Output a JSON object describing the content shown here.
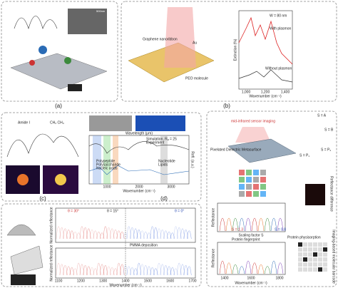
{
  "panel_a": {
    "label": "(a)",
    "image_text": "500nm"
  },
  "panel_b": {
    "label": "(b)",
    "diagram_labels": [
      "Graphene nanoribbon",
      "Au",
      "PEO molecule"
    ],
    "plot": {
      "y_label": "Extinction (%)",
      "x_label": "Wavenumber (cm⁻¹)",
      "annotations": [
        "W = 80 nm",
        "With plasmon",
        "Without plasmon"
      ],
      "x_ticks": [
        "1,000",
        "1,200",
        "1,400"
      ]
    }
  },
  "panel_c": {
    "label": "(c)",
    "annotations": [
      "Amide I",
      "CH₂ CH₃"
    ]
  },
  "panel_d": {
    "label": "(d)",
    "top_axis": "Wavelength (μm)",
    "x_label": "Wavenumber (cm⁻¹)",
    "y_label": "Refl. (a.u.)",
    "legend": [
      "Simulation, Rₐ = 25",
      "Experiment"
    ],
    "classes": [
      "Polypeptide",
      "Polysaccharide",
      "Nucleic acids",
      "Nucleotide",
      "Lipids"
    ],
    "x_ticks": [
      "1000",
      "2000",
      "3000"
    ]
  },
  "panel_e": {
    "y_label_top": "Normalized reflectance",
    "y_label_bottom": "Normalized reflectance",
    "x_label": "Wavenumber (cm⁻¹)",
    "angles": [
      "θ = 30°",
      "θ = 15°",
      "θ = 0°"
    ],
    "step": "PMMA deposition",
    "x_ticks": [
      "1100",
      "1200",
      "1300",
      "1400",
      "1500",
      "1600",
      "1700"
    ]
  },
  "panel_f": {
    "light": "mid-infrared sensor imaging",
    "title": "Pixelated Dielectric Metasurface",
    "unit_cells": [
      "S = A",
      "S = B",
      "S = P₁",
      "S = P₂"
    ],
    "scaling": "Scaling factor S",
    "fingerprint": "Protein fingerprint",
    "physisorption": "Protein physisorption",
    "y_label": "Reflectance",
    "x_label": "Wavenumber (cm⁻¹)",
    "x_ticks": [
      "1400",
      "1600",
      "1800"
    ],
    "s_min": "S = 1.3",
    "s_max": "S = 0.8",
    "barcode": "Imaging-based molecular barcode",
    "colorbar": "Reflectance difference"
  }
}
